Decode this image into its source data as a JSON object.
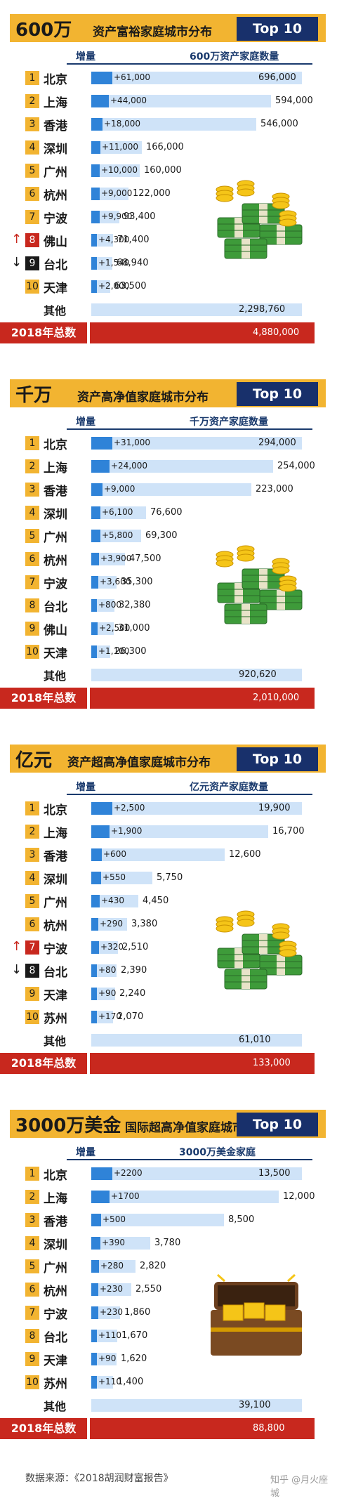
{
  "chart_data": [
    {
      "type": "bar",
      "title_big": "600万",
      "title_sub": "资产富裕家庭城市分布",
      "badge": "Top 10",
      "increase_header": "增量",
      "value_header": "600万资产家庭数量",
      "rows": [
        {
          "rank": "1",
          "city": "北京",
          "value": 696000,
          "value_label": "696,000",
          "increase": 61000,
          "increase_label": "+61,000",
          "change": ""
        },
        {
          "rank": "2",
          "city": "上海",
          "value": 594000,
          "value_label": "594,000",
          "increase": 44000,
          "increase_label": "+44,000",
          "change": ""
        },
        {
          "rank": "3",
          "city": "香港",
          "value": 546000,
          "value_label": "546,000",
          "increase": 18000,
          "increase_label": "+18,000",
          "change": ""
        },
        {
          "rank": "4",
          "city": "深圳",
          "value": 166000,
          "value_label": "166,000",
          "increase": 11000,
          "increase_label": "+11,000",
          "change": ""
        },
        {
          "rank": "5",
          "city": "广州",
          "value": 160000,
          "value_label": "160,000",
          "increase": 10000,
          "increase_label": "+10,000",
          "change": ""
        },
        {
          "rank": "6",
          "city": "杭州",
          "value": 122000,
          "value_label": "122,000",
          "increase": 9000,
          "increase_label": "+9,000",
          "change": ""
        },
        {
          "rank": "7",
          "city": "宁波",
          "value": 93400,
          "value_label": "93,400",
          "increase": 9900,
          "increase_label": "+9,900",
          "change": ""
        },
        {
          "rank": "8",
          "city": "佛山",
          "value": 71400,
          "value_label": "71,400",
          "increase": 4300,
          "increase_label": "+4,300",
          "change": "up"
        },
        {
          "rank": "9",
          "city": "台北",
          "value": 68940,
          "value_label": "68,940",
          "increase": 1540,
          "increase_label": "+1,540",
          "change": "down"
        },
        {
          "rank": "10",
          "city": "天津",
          "value": 63500,
          "value_label": "63,500",
          "increase": 2000,
          "increase_label": "+2,000",
          "change": ""
        }
      ],
      "other_label": "其他",
      "other_value": 2298760,
      "other_value_label": "2,298,760",
      "total_label": "2018年总数",
      "total_value": 4880000,
      "total_value_label": "4,880,000",
      "colors": {
        "bar": "#cfe3f8",
        "increase": "#2f83d8",
        "total": "#c8281e",
        "title": "#f2b431",
        "badge": "#18306b"
      }
    },
    {
      "type": "bar",
      "title_big": "千万",
      "title_sub": "资产高净值家庭城市分布",
      "badge": "Top 10",
      "increase_header": "增量",
      "value_header": "千万资产家庭数量",
      "rows": [
        {
          "rank": "1",
          "city": "北京",
          "value": 294000,
          "value_label": "294,000",
          "increase": 31000,
          "increase_label": "+31,000",
          "change": ""
        },
        {
          "rank": "2",
          "city": "上海",
          "value": 254000,
          "value_label": "254,000",
          "increase": 24000,
          "increase_label": "+24,000",
          "change": ""
        },
        {
          "rank": "3",
          "city": "香港",
          "value": 223000,
          "value_label": "223,000",
          "increase": 9000,
          "increase_label": "+9,000",
          "change": ""
        },
        {
          "rank": "4",
          "city": "深圳",
          "value": 76600,
          "value_label": "76,600",
          "increase": 6100,
          "increase_label": "+6,100",
          "change": ""
        },
        {
          "rank": "5",
          "city": "广州",
          "value": 69300,
          "value_label": "69,300",
          "increase": 5800,
          "increase_label": "+5,800",
          "change": ""
        },
        {
          "rank": "6",
          "city": "杭州",
          "value": 47500,
          "value_label": "47,500",
          "increase": 3900,
          "increase_label": "+3,900",
          "change": ""
        },
        {
          "rank": "7",
          "city": "宁波",
          "value": 35300,
          "value_label": "35,300",
          "increase": 3600,
          "increase_label": "+3,600",
          "change": ""
        },
        {
          "rank": "8",
          "city": "台北",
          "value": 32380,
          "value_label": "32,380",
          "increase": 800,
          "increase_label": "+800",
          "change": ""
        },
        {
          "rank": "9",
          "city": "佛山",
          "value": 31000,
          "value_label": "31,000",
          "increase": 2500,
          "increase_label": "+2,500",
          "change": ""
        },
        {
          "rank": "10",
          "city": "天津",
          "value": 26300,
          "value_label": "26,300",
          "increase": 1100,
          "increase_label": "+1,100",
          "change": ""
        }
      ],
      "other_label": "其他",
      "other_value": 920620,
      "other_value_label": "920,620",
      "total_label": "2018年总数",
      "total_value": 2010000,
      "total_value_label": "2,010,000",
      "colors": {
        "bar": "#cfe3f8",
        "increase": "#2f83d8",
        "total": "#c8281e",
        "title": "#f2b431",
        "badge": "#18306b"
      }
    },
    {
      "type": "bar",
      "title_big": "亿元",
      "title_sub": "资产超高净值家庭城市分布",
      "badge": "Top 10",
      "increase_header": "增量",
      "value_header": "亿元资产家庭数量",
      "rows": [
        {
          "rank": "1",
          "city": "北京",
          "value": 19900,
          "value_label": "19,900",
          "increase": 2500,
          "increase_label": "+2,500",
          "change": ""
        },
        {
          "rank": "2",
          "city": "上海",
          "value": 16700,
          "value_label": "16,700",
          "increase": 1900,
          "increase_label": "+1,900",
          "change": ""
        },
        {
          "rank": "3",
          "city": "香港",
          "value": 12600,
          "value_label": "12,600",
          "increase": 600,
          "increase_label": "+600",
          "change": ""
        },
        {
          "rank": "4",
          "city": "深圳",
          "value": 5750,
          "value_label": "5,750",
          "increase": 550,
          "increase_label": "+550",
          "change": ""
        },
        {
          "rank": "5",
          "city": "广州",
          "value": 4450,
          "value_label": "4,450",
          "increase": 430,
          "increase_label": "+430",
          "change": ""
        },
        {
          "rank": "6",
          "city": "杭州",
          "value": 3380,
          "value_label": "3,380",
          "increase": 290,
          "increase_label": "+290",
          "change": ""
        },
        {
          "rank": "7",
          "city": "宁波",
          "value": 2510,
          "value_label": "2,510",
          "increase": 320,
          "increase_label": "+320",
          "change": "up"
        },
        {
          "rank": "8",
          "city": "台北",
          "value": 2390,
          "value_label": "2,390",
          "increase": 80,
          "increase_label": "+80",
          "change": "down"
        },
        {
          "rank": "9",
          "city": "天津",
          "value": 2240,
          "value_label": "2,240",
          "increase": 90,
          "increase_label": "+90",
          "change": ""
        },
        {
          "rank": "10",
          "city": "苏州",
          "value": 2070,
          "value_label": "2,070",
          "increase": 170,
          "increase_label": "+170",
          "change": ""
        }
      ],
      "other_label": "其他",
      "other_value": 61010,
      "other_value_label": "61,010",
      "total_label": "2018年总数",
      "total_value": 133000,
      "total_value_label": "133,000",
      "colors": {
        "bar": "#cfe3f8",
        "increase": "#2f83d8",
        "total": "#c8281e",
        "title": "#f2b431",
        "badge": "#18306b"
      }
    },
    {
      "type": "bar",
      "title_big": "3000万美金",
      "title_sub": "国际超高净值家庭城市分布",
      "badge": "Top 10",
      "increase_header": "增量",
      "value_header": "3000万美金家庭",
      "rows": [
        {
          "rank": "1",
          "city": "北京",
          "value": 13500,
          "value_label": "13,500",
          "increase": 2200,
          "increase_label": "+2200",
          "change": ""
        },
        {
          "rank": "2",
          "city": "上海",
          "value": 12000,
          "value_label": "12,000",
          "increase": 1700,
          "increase_label": "+1700",
          "change": ""
        },
        {
          "rank": "3",
          "city": "香港",
          "value": 8500,
          "value_label": "8,500",
          "increase": 500,
          "increase_label": "+500",
          "change": ""
        },
        {
          "rank": "4",
          "city": "深圳",
          "value": 3780,
          "value_label": "3,780",
          "increase": 390,
          "increase_label": "+390",
          "change": ""
        },
        {
          "rank": "5",
          "city": "广州",
          "value": 2820,
          "value_label": "2,820",
          "increase": 280,
          "increase_label": "+280",
          "change": ""
        },
        {
          "rank": "6",
          "city": "杭州",
          "value": 2550,
          "value_label": "2,550",
          "increase": 230,
          "increase_label": "+230",
          "change": ""
        },
        {
          "rank": "7",
          "city": "宁波",
          "value": 1860,
          "value_label": "1,860",
          "increase": 230,
          "increase_label": "+230",
          "change": ""
        },
        {
          "rank": "8",
          "city": "台北",
          "value": 1670,
          "value_label": "1,670",
          "increase": 110,
          "increase_label": "+110",
          "change": ""
        },
        {
          "rank": "9",
          "city": "天津",
          "value": 1620,
          "value_label": "1,620",
          "increase": 90,
          "increase_label": "+90",
          "change": ""
        },
        {
          "rank": "10",
          "city": "苏州",
          "value": 1400,
          "value_label": "1,400",
          "increase": 110,
          "increase_label": "+110",
          "change": ""
        }
      ],
      "other_label": "其他",
      "other_value": 39100,
      "other_value_label": "39,100",
      "total_label": "2018年总数",
      "total_value": 88800,
      "total_value_label": "88,800",
      "colors": {
        "bar": "#cfe3f8",
        "increase": "#2f83d8",
        "total": "#c8281e",
        "title": "#f2b431",
        "badge": "#18306b"
      }
    }
  ],
  "footer": {
    "source": "数据来源：《2018胡润财富报告》",
    "watermark": "知乎 @月火座城"
  },
  "illustrations": [
    "money-stack-icon",
    "money-stack-icon",
    "money-stack-icon",
    "treasure-chest-icon"
  ]
}
